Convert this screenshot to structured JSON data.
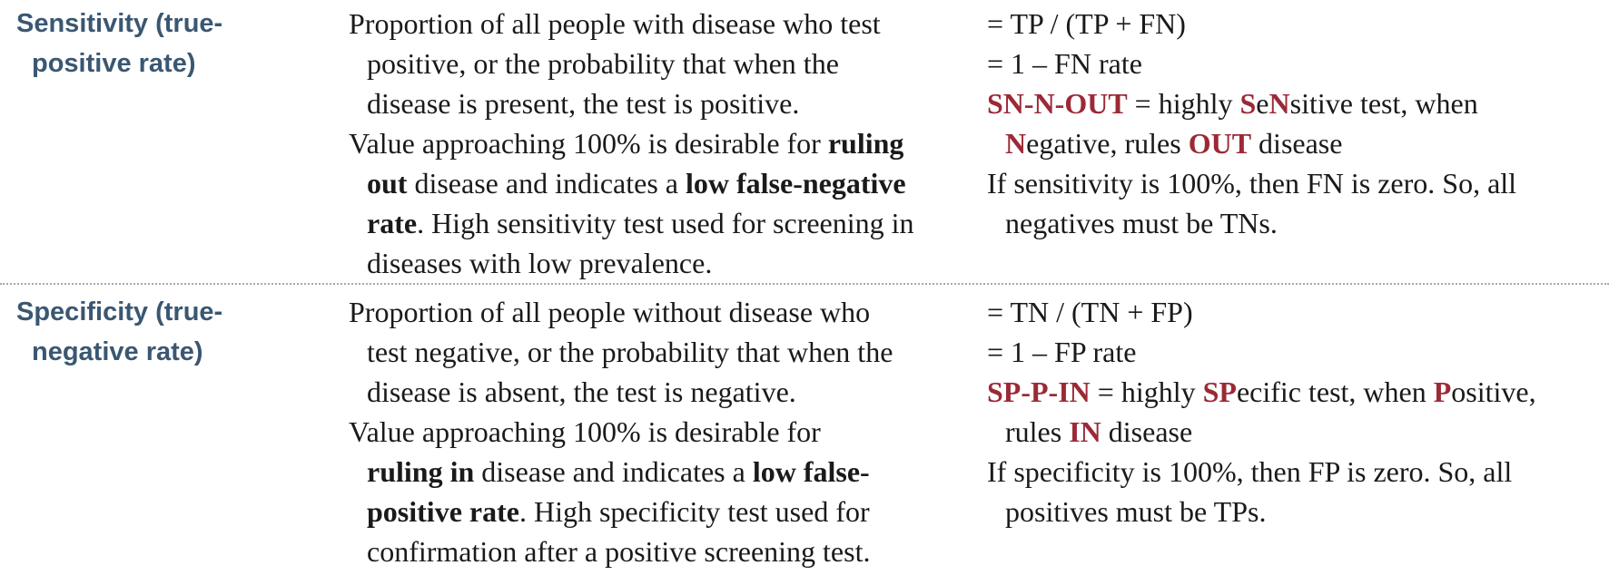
{
  "rows": [
    {
      "term_line1": "Sensitivity (true-",
      "term_line2": "positive rate)",
      "desc": {
        "l1": "Proportion of all people with disease who test",
        "l2": "positive, or the probability that when the",
        "l3": "disease is present, the test is positive.",
        "l4a": "Value approaching 100% is desirable for ",
        "l4b": "ruling",
        "l5a": "out",
        "l5b": " disease and indicates a ",
        "l5c": "low false-negative",
        "l6a": "rate",
        "l6b": ". High sensitivity test used for screening in",
        "l7": "diseases with low prevalence."
      },
      "formula": {
        "f1": "= TP / (TP + FN)",
        "f2": "= 1 – FN rate",
        "m_kw": "SN-N-OUT",
        "m_a": " = highly ",
        "m_b": "S",
        "m_c": "e",
        "m_d": "N",
        "m_e": "sitive test, when",
        "m2_a": "N",
        "m2_b": "egative, rules ",
        "m2_c": "OUT",
        "m2_d": " disease",
        "n1": "If sensitivity is 100%, then FN is zero. So, all",
        "n2": "negatives must be TNs."
      }
    },
    {
      "term_line1": "Specificity (true-",
      "term_line2": "negative rate)",
      "desc": {
        "l1": "Proportion of all people without disease who",
        "l2": "test negative, or the probability that when the",
        "l3": "disease is absent, the test is negative.",
        "l4": "Value approaching 100% is desirable for",
        "l5a": "ruling in",
        "l5b": " disease and indicates a ",
        "l5c": "low false-",
        "l6a": "positive rate",
        "l6b": ". High specificity test used for",
        "l7": "confirmation after a positive screening test."
      },
      "formula": {
        "f1": "= TN / (TN + FP)",
        "f2": "= 1 – FP rate",
        "m_kw": "SP-P-IN",
        "m_a": " = highly ",
        "m_b": "SP",
        "m_c": "ecific test, when ",
        "m_d": "P",
        "m_e": "ositive,",
        "m2_a": "rules ",
        "m2_b": "IN",
        "m2_c": " disease",
        "n1": "If specificity is 100%, then FP is zero. So, all",
        "n2": "positives must be TPs."
      }
    }
  ],
  "colors": {
    "term": "#3a5772",
    "keyword": "#9b2a36",
    "divider": "#a8a8a8"
  }
}
